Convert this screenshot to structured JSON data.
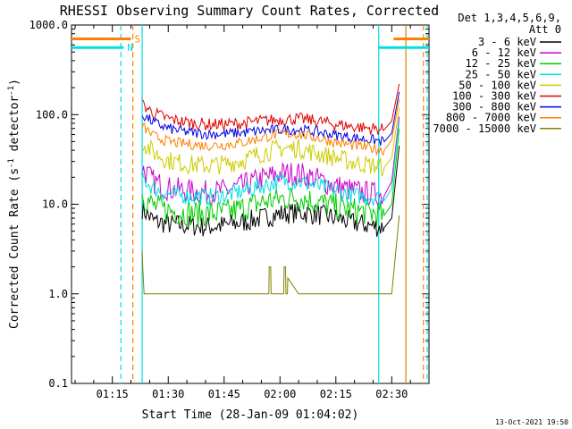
{
  "chart_data": {
    "type": "line",
    "title": "RHESSI Observing Summary Count Rates, Corrected",
    "xlabel": "Start Time (28-Jan-09 01:04:02)",
    "ylabel_main": "Corrected Count Rate (s",
    "ylabel_sup1": "-1",
    "ylabel_mid": " detector",
    "ylabel_sup2": "-1",
    "ylabel_end": ")",
    "yscale": "log",
    "ylim": [
      0.1,
      1000
    ],
    "xlim_minutes": [
      64.03,
      160.0
    ],
    "x_ticks": [
      {
        "label": "01:15",
        "minutes": 75
      },
      {
        "label": "01:30",
        "minutes": 90
      },
      {
        "label": "01:45",
        "minutes": 105
      },
      {
        "label": "02:00",
        "minutes": 120
      },
      {
        "label": "02:15",
        "minutes": 135
      },
      {
        "label": "02:30",
        "minutes": 150
      }
    ],
    "y_ticks": [
      {
        "label": "0.1",
        "value": 0.1
      },
      {
        "label": "1.0",
        "value": 1
      },
      {
        "label": "10.0",
        "value": 10
      },
      {
        "label": "100.0",
        "value": 100
      },
      {
        "label": "1000.0",
        "value": 1000
      }
    ],
    "legend_header": [
      "Det 1,3,4,5,6,9,",
      "Att 0"
    ],
    "legend_position": "right-outside",
    "series": [
      {
        "name": "3 - 6 keV",
        "color": "#000000",
        "x": [
          83,
          86,
          90,
          95,
          100,
          105,
          110,
          115,
          120,
          125,
          130,
          135,
          140,
          145,
          148,
          150,
          152
        ],
        "y": [
          9,
          6.5,
          6,
          5.8,
          5.6,
          5.8,
          6.3,
          7,
          7.8,
          8.1,
          7.7,
          7,
          6.2,
          5.7,
          5.5,
          7,
          45
        ]
      },
      {
        "name": "6 - 12 keV",
        "color": "#cc00cc",
        "x": [
          83,
          86,
          90,
          95,
          100,
          105,
          110,
          115,
          120,
          125,
          130,
          135,
          140,
          145,
          148,
          150,
          152
        ],
        "y": [
          25,
          18,
          15,
          14,
          13.5,
          14,
          16,
          19,
          22,
          22,
          19,
          16,
          14,
          13,
          12.5,
          18,
          95
        ]
      },
      {
        "name": "12 - 25 keV",
        "color": "#00cc00",
        "x": [
          83,
          86,
          90,
          95,
          100,
          105,
          110,
          115,
          120,
          125,
          130,
          135,
          140,
          145,
          148,
          150,
          152
        ],
        "y": [
          13,
          9.5,
          8.5,
          8,
          7.8,
          8,
          9,
          10.5,
          11.5,
          12,
          10.5,
          9.5,
          8.5,
          8,
          7.5,
          10,
          70
        ]
      },
      {
        "name": "25 - 50 keV",
        "color": "#00e0e0",
        "x": [
          83,
          86,
          90,
          95,
          100,
          105,
          110,
          115,
          120,
          125,
          130,
          135,
          140,
          145,
          148,
          150,
          152
        ],
        "y": [
          20,
          15,
          13,
          12.5,
          12,
          12.5,
          14,
          16,
          18,
          18,
          16,
          14,
          12.5,
          12,
          11,
          15,
          85
        ]
      },
      {
        "name": "50 - 100 keV",
        "color": "#cccc00",
        "x": [
          83,
          86,
          90,
          95,
          100,
          105,
          110,
          115,
          120,
          125,
          130,
          135,
          140,
          145,
          148,
          150,
          152
        ],
        "y": [
          50,
          38,
          31,
          28,
          27,
          28,
          31,
          37,
          42,
          42,
          37,
          33,
          29,
          27,
          26,
          33,
          120
        ]
      },
      {
        "name": "100 - 300 keV",
        "color": "#e00000",
        "x": [
          83,
          86,
          90,
          95,
          100,
          105,
          110,
          115,
          120,
          125,
          130,
          135,
          140,
          145,
          148,
          150,
          152
        ],
        "y": [
          130,
          105,
          90,
          82,
          78,
          78,
          80,
          85,
          88,
          90,
          85,
          78,
          73,
          70,
          68,
          85,
          220
        ]
      },
      {
        "name": "300 - 800 keV",
        "color": "#0000e0",
        "x": [
          83,
          86,
          90,
          95,
          100,
          105,
          110,
          115,
          120,
          125,
          130,
          135,
          140,
          145,
          148,
          150,
          152
        ],
        "y": [
          100,
          82,
          70,
          64,
          61,
          61,
          63,
          66,
          68,
          68,
          64,
          59,
          55,
          52,
          50,
          62,
          180
        ]
      },
      {
        "name": "800 - 7000 keV",
        "color": "#ff8000",
        "x": [
          83,
          86,
          90,
          95,
          100,
          105,
          110,
          115,
          120,
          125,
          130,
          135,
          140,
          145,
          148,
          150,
          152
        ],
        "y": [
          75,
          58,
          50,
          47,
          45,
          46,
          49,
          55,
          61,
          61,
          55,
          49,
          45,
          42,
          40,
          52,
          150
        ]
      },
      {
        "name": "7000 - 15000 keV",
        "color": "#808000",
        "x": [
          83,
          83.2,
          83.5,
          86,
          86.1,
          90,
          95,
          100,
          105,
          110,
          110.1,
          115,
          117,
          117.1,
          117.5,
          117.6,
          121,
          121.1,
          121.5,
          121.6,
          122,
          122.1,
          125,
          130,
          135,
          140,
          145,
          148,
          150,
          152
        ],
        "y": [
          3,
          1.8,
          1,
          1,
          1,
          1,
          1,
          1,
          1,
          1,
          1,
          1,
          1,
          2,
          2,
          1,
          1,
          2,
          2,
          1,
          1,
          1.5,
          1,
          1,
          1,
          1,
          1,
          1,
          1,
          7.5
        ]
      }
    ],
    "markers": [
      {
        "type": "flag",
        "label": "S",
        "color": "#ff8000",
        "y_value": 700,
        "segments": [
          [
            64.03,
            80
          ],
          [
            150.5,
            160
          ]
        ]
      },
      {
        "type": "flag",
        "label": "N",
        "color": "#00e0e0",
        "y_value": 560,
        "segments": [
          [
            64.03,
            78
          ],
          [
            146.5,
            160
          ]
        ]
      },
      {
        "type": "vline",
        "style": "dashed",
        "color": "#00e0e0",
        "minutes": 77.3
      },
      {
        "type": "vline",
        "style": "dashed",
        "color": "#ff8000",
        "minutes": 80.5
      },
      {
        "type": "vline",
        "style": "solid",
        "color": "#00e0e0",
        "minutes": 83
      },
      {
        "type": "vline",
        "style": "solid",
        "color": "#00e0e0",
        "minutes": 146.5
      },
      {
        "type": "vline",
        "style": "solid",
        "color": "#cc8800",
        "minutes": 153.8
      },
      {
        "type": "vline",
        "style": "dashed",
        "color": "#00e0e0",
        "minutes": 159.5
      },
      {
        "type": "vline",
        "style": "dashed",
        "color": "#ff8000",
        "minutes": 158.5
      }
    ]
  },
  "footer_timestamp": "13-Oct-2021 19:50"
}
